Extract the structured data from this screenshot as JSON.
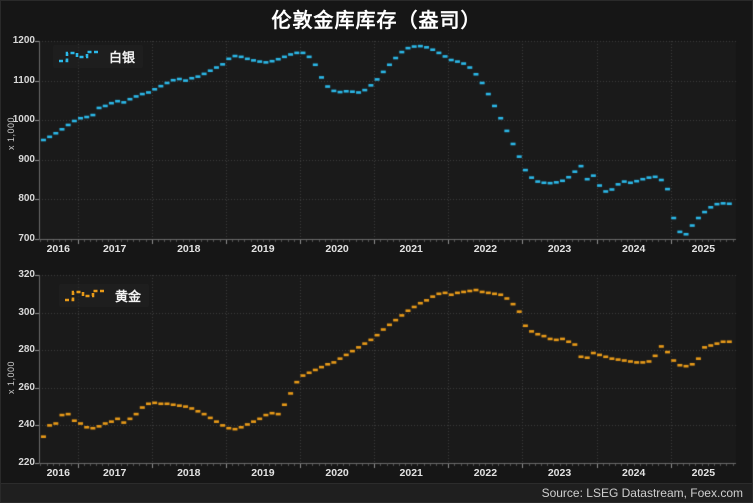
{
  "title": "伦敦金库库存（盎司）",
  "footer": {
    "source": "Source: LSEG Datastream, Foex.com"
  },
  "colors": {
    "background": "#161616",
    "plot_background": "#1a1a1a",
    "grid": "#3d3d3d",
    "axis_line": "#6a6a6a",
    "tick_major": "#909090",
    "tick_minor": "#555555",
    "tick_text": "#d9d9d9",
    "title_text": "#ffffff",
    "footer_bg": "#1f1f1f",
    "footer_text": "#cfcfcf",
    "silver": "#2bb8e8",
    "gold": "#e89a18"
  },
  "chart_data": [
    {
      "type": "line",
      "style": "monthly-dash-steps",
      "name": "白银",
      "color": "#2bb8e8",
      "unit_label": "x 1,000",
      "ylim": [
        700,
        1200
      ],
      "yticks": [
        700,
        800,
        900,
        1000,
        1100,
        1200
      ],
      "xlim": [
        2016.48,
        2025.88
      ],
      "year_labels": [
        2016,
        2017,
        2018,
        2019,
        2020,
        2021,
        2022,
        2023,
        2024,
        2025
      ],
      "x_start": 2016.54,
      "x_step": 0.08333,
      "values": [
        950,
        958,
        967,
        977,
        988,
        998,
        1005,
        1008,
        1013,
        1031,
        1036,
        1043,
        1048,
        1045,
        1053,
        1060,
        1066,
        1070,
        1078,
        1086,
        1094,
        1101,
        1104,
        1100,
        1106,
        1110,
        1117,
        1125,
        1133,
        1141,
        1155,
        1162,
        1160,
        1155,
        1151,
        1148,
        1146,
        1149,
        1154,
        1160,
        1166,
        1170,
        1170,
        1160,
        1140,
        1108,
        1085,
        1074,
        1071,
        1073,
        1072,
        1070,
        1076,
        1088,
        1103,
        1122,
        1140,
        1157,
        1172,
        1182,
        1186,
        1187,
        1184,
        1178,
        1170,
        1161,
        1152,
        1148,
        1143,
        1133,
        1116,
        1094,
        1066,
        1036,
        1005,
        973,
        940,
        908,
        874,
        855,
        845,
        842,
        841,
        843,
        847,
        856,
        870,
        884,
        851,
        860,
        835,
        820,
        825,
        838,
        845,
        842,
        846,
        851,
        855,
        857,
        849,
        826,
        753,
        718,
        712,
        734,
        753,
        768,
        780,
        788,
        790,
        789
      ]
    },
    {
      "type": "line",
      "style": "monthly-dash-steps",
      "name": "黄金",
      "color": "#e89a18",
      "unit_label": "x 1,000",
      "ylim": [
        220,
        320
      ],
      "yticks": [
        220,
        240,
        260,
        280,
        300,
        320
      ],
      "xlim": [
        2016.48,
        2025.88
      ],
      "year_labels": [
        2016,
        2017,
        2018,
        2019,
        2020,
        2021,
        2022,
        2023,
        2024,
        2025
      ],
      "x_start": 2016.54,
      "x_step": 0.08333,
      "values": [
        234,
        240,
        241,
        245.5,
        246,
        242.5,
        241,
        239,
        238.5,
        239.5,
        241,
        242,
        243.5,
        241.5,
        243.5,
        246,
        249.5,
        251.5,
        252,
        251.5,
        251.5,
        251,
        250.5,
        250,
        249,
        247.5,
        246,
        244,
        242,
        240,
        238.5,
        238,
        239,
        240.5,
        242,
        243.5,
        245.5,
        246.5,
        246,
        251,
        257,
        263,
        266.5,
        268,
        269.5,
        271,
        272.5,
        273.5,
        275.5,
        277.5,
        279.5,
        281.5,
        283.5,
        285.5,
        288,
        291,
        293.5,
        296,
        298.5,
        301,
        303,
        305,
        306.5,
        308.5,
        310,
        310.5,
        309.5,
        310.5,
        311,
        311.5,
        312,
        311,
        310.5,
        310,
        309.5,
        307.5,
        304.5,
        300.5,
        293,
        290,
        288.5,
        287.5,
        286,
        285.5,
        286,
        284.5,
        283,
        276.5,
        276,
        278.5,
        277.5,
        276.5,
        275.5,
        275,
        274.5,
        274,
        273.5,
        273.5,
        274,
        277,
        282,
        279,
        274.5,
        272,
        271.5,
        272.5,
        275.5,
        281.5,
        282.5,
        283.5,
        284.5,
        284.5
      ]
    }
  ]
}
